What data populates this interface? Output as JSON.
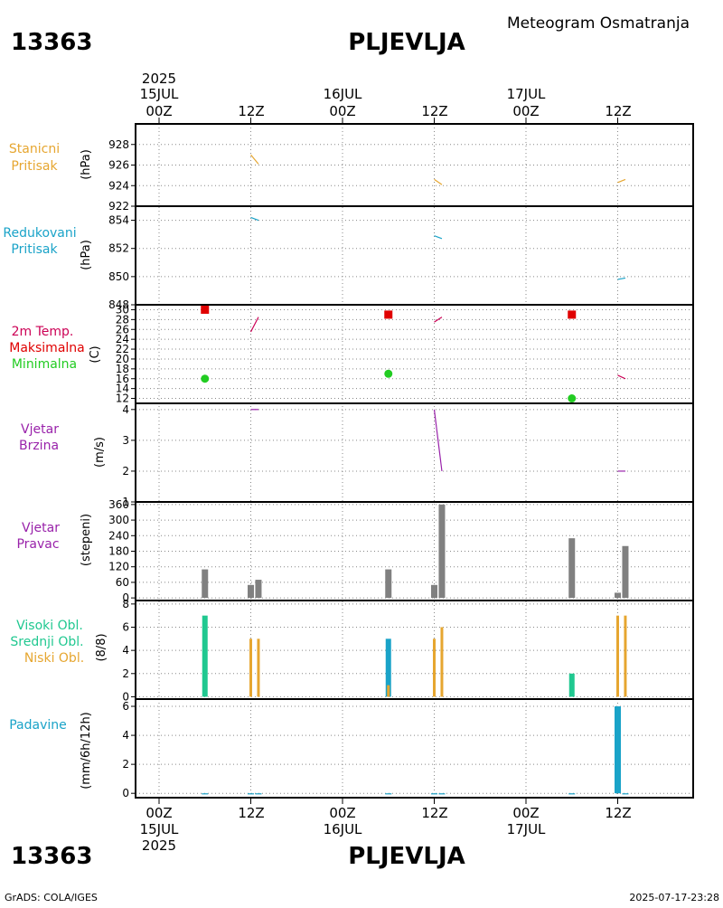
{
  "header": {
    "station_id": "13363",
    "station_name": "PLJEVLJA",
    "subtitle": "Meteogram Osmatranja"
  },
  "footer": {
    "station_id": "13363",
    "station_name": "PLJEVLJA",
    "credit": "GrADS: COLA/IGES",
    "timestamp": "2025-07-17-23:28"
  },
  "time_axis": {
    "year": "2025",
    "ticks": [
      "00Z",
      "12Z",
      "00Z",
      "12Z",
      "00Z",
      "12Z"
    ],
    "dates": [
      "15JUL",
      "16JUL",
      "17JUL"
    ]
  },
  "panels": {
    "pressure": {
      "label_lines": [
        "Stanicni",
        "Pritisak"
      ],
      "unit": "(hPa)",
      "color": "#e6a630"
    },
    "reduced": {
      "label_lines": [
        "Redukovani",
        "Pritisak"
      ],
      "unit": "(hPa)",
      "color": "#1aa3c8"
    },
    "temp": {
      "label_lines": [
        "2m Temp.",
        "Maksimalna",
        "Minimalna"
      ],
      "unit": "(C)",
      "colors": [
        "#cc0055",
        "#e00000",
        "#22cc22"
      ]
    },
    "wind_speed": {
      "label_lines": [
        "Vjetar",
        "Brzina"
      ],
      "unit": "(m/s)",
      "color": "#9922aa"
    },
    "wind_dir": {
      "label_lines": [
        "Vjetar",
        "Pravac"
      ],
      "unit": "(stepeni)",
      "color": "#9922aa"
    },
    "clouds": {
      "label_lines": [
        "Visoki Obl.",
        "Srednji Obl.",
        "Niski Obl."
      ],
      "unit": "(8/8)",
      "colors": [
        "#20c890",
        "#1aa3c8",
        "#e6a630"
      ]
    },
    "precip": {
      "label_lines": [
        "Padavine"
      ],
      "unit": "(mm/6h/12h)",
      "color": "#1aa3c8"
    }
  },
  "chart_data": [
    {
      "type": "line",
      "name": "station_pressure",
      "ylabel": "(hPa)",
      "ylim": [
        922,
        930
      ],
      "yticks": [
        922,
        924,
        926,
        928
      ],
      "segments": [
        {
          "x": [
            12,
            13
          ],
          "y": [
            927,
            926.1
          ]
        },
        {
          "x": [
            36,
            37
          ],
          "y": [
            924.6,
            924.1
          ]
        },
        {
          "x": [
            60,
            61
          ],
          "y": [
            924.3,
            924.6
          ]
        }
      ]
    },
    {
      "type": "line",
      "name": "reduced_pressure",
      "ylabel": "(hPa)",
      "ylim": [
        848,
        855
      ],
      "yticks": [
        848,
        850,
        852,
        854
      ],
      "segments": [
        {
          "x": [
            12,
            13
          ],
          "y": [
            854.2,
            854
          ]
        },
        {
          "x": [
            36,
            37
          ],
          "y": [
            852.9,
            852.7
          ]
        },
        {
          "x": [
            60,
            61
          ],
          "y": [
            849.8,
            849.9
          ]
        }
      ]
    },
    {
      "type": "line+scatter",
      "name": "temperature",
      "ylabel": "(C)",
      "ylim": [
        11,
        31
      ],
      "yticks": [
        12,
        14,
        16,
        18,
        20,
        22,
        24,
        26,
        28,
        30
      ],
      "temp_segments": [
        {
          "x": [
            12,
            13
          ],
          "y": [
            25.5,
            28.5
          ]
        },
        {
          "x": [
            36,
            37
          ],
          "y": [
            27.5,
            28.5
          ]
        },
        {
          "x": [
            60,
            61
          ],
          "y": [
            16.7,
            16
          ]
        }
      ],
      "max": {
        "x": [
          6,
          30,
          54
        ],
        "y": [
          30,
          29,
          29
        ]
      },
      "min": {
        "x": [
          6,
          30,
          54
        ],
        "y": [
          16,
          17,
          12
        ]
      }
    },
    {
      "type": "line",
      "name": "wind_speed",
      "ylabel": "(m/s)",
      "ylim": [
        1,
        4.2
      ],
      "yticks": [
        1,
        2,
        3,
        4
      ],
      "segments": [
        {
          "x": [
            12,
            13
          ],
          "y": [
            4,
            4
          ]
        },
        {
          "x": [
            36,
            37
          ],
          "y": [
            4,
            2
          ]
        },
        {
          "x": [
            60,
            61
          ],
          "y": [
            2,
            2
          ]
        }
      ]
    },
    {
      "type": "bar",
      "name": "wind_direction",
      "ylabel": "(stepeni)",
      "ylim": [
        -10,
        370
      ],
      "yticks": [
        0,
        60,
        120,
        180,
        240,
        300,
        360
      ],
      "bars": [
        {
          "x": 6,
          "v": 110
        },
        {
          "x": 12,
          "v": 50
        },
        {
          "x": 13,
          "v": 70
        },
        {
          "x": 30,
          "v": 110
        },
        {
          "x": 36,
          "v": 50
        },
        {
          "x": 37,
          "v": 360
        },
        {
          "x": 54,
          "v": 230
        },
        {
          "x": 60,
          "v": 20
        },
        {
          "x": 61,
          "v": 200
        }
      ]
    },
    {
      "type": "bar",
      "name": "clouds",
      "ylabel": "(8/8)",
      "ylim": [
        -0.2,
        8.3
      ],
      "yticks": [
        0,
        2,
        4,
        6,
        8
      ],
      "high": [
        {
          "x": 6,
          "v": 7
        },
        {
          "x": 54,
          "v": 2
        }
      ],
      "mid": [
        {
          "x": 30,
          "v": 5
        }
      ],
      "low": [
        {
          "x": 12,
          "v": 5
        },
        {
          "x": 13,
          "v": 5
        },
        {
          "x": 30,
          "v": 1
        },
        {
          "x": 36,
          "v": 5
        },
        {
          "x": 37,
          "v": 6
        },
        {
          "x": 60,
          "v": 7
        },
        {
          "x": 61,
          "v": 7
        }
      ]
    },
    {
      "type": "bar",
      "name": "precipitation",
      "ylabel": "(mm/6h/12h)",
      "ylim": [
        -0.3,
        6.5
      ],
      "yticks": [
        0,
        2,
        4,
        6
      ],
      "bars": [
        {
          "x": 6,
          "v": 0
        },
        {
          "x": 12,
          "v": 0
        },
        {
          "x": 13,
          "v": 0
        },
        {
          "x": 30,
          "v": 0
        },
        {
          "x": 36,
          "v": 0
        },
        {
          "x": 37,
          "v": 0
        },
        {
          "x": 54,
          "v": 0
        },
        {
          "x": 60,
          "v": 6
        },
        {
          "x": 61,
          "v": 0
        }
      ]
    }
  ]
}
